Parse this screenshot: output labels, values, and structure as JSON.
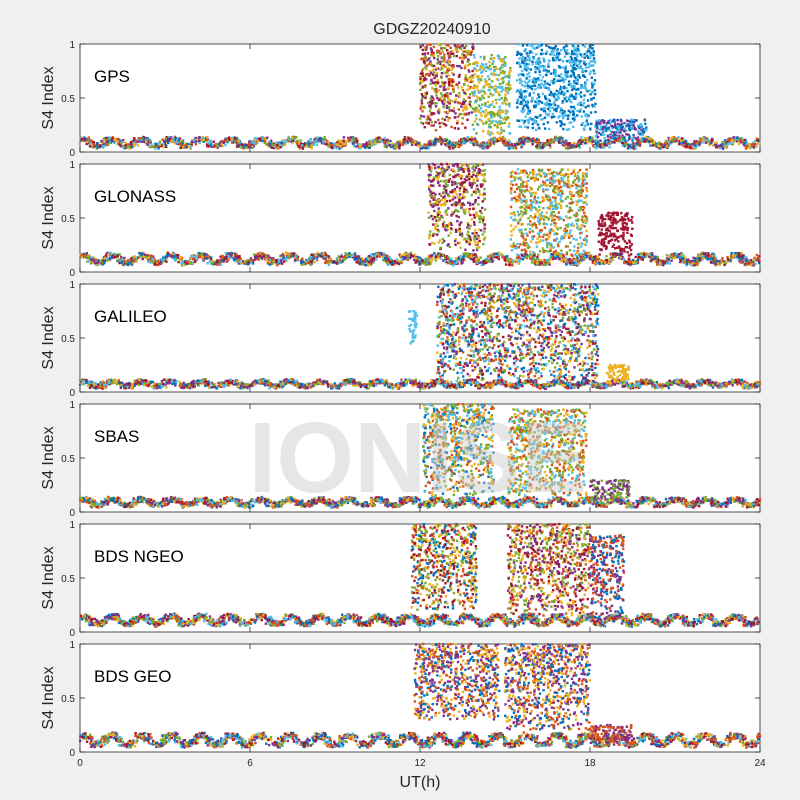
{
  "chart_data": {
    "type": "scatter",
    "title": "GDGZ20240910",
    "xlabel": "UT(h)",
    "ylabel": "S4 Index",
    "xlim": [
      0,
      24
    ],
    "ylim": [
      0,
      1
    ],
    "xticks": [
      0,
      6,
      12,
      18,
      24
    ],
    "yticks": [
      0,
      0.5,
      1
    ],
    "ytick_labels": [
      "0",
      "0.5",
      "1"
    ],
    "grid": false,
    "watermark": "IONISE",
    "colors": [
      "#0072bd",
      "#d95319",
      "#edb120",
      "#7e2f8e",
      "#77ac30",
      "#4dbeee",
      "#a2142f"
    ],
    "panels": [
      {
        "label": "GPS",
        "background_level": [
          0.05,
          0.12
        ],
        "active_intervals": [
          {
            "x": [
              12.0,
              13.9
            ],
            "y": [
              0.2,
              1.0
            ],
            "colors": [
              1,
              2,
              3,
              4,
              6
            ]
          },
          {
            "x": [
              13.9,
              15.2
            ],
            "y": [
              0.15,
              0.9
            ],
            "colors": [
              4,
              2,
              5
            ]
          },
          {
            "x": [
              15.4,
              18.2
            ],
            "y": [
              0.2,
              1.0
            ],
            "colors": [
              0,
              5
            ]
          },
          {
            "x": [
              18.2,
              20.0
            ],
            "y": [
              0.1,
              0.3
            ],
            "colors": [
              3,
              0,
              5
            ]
          }
        ]
      },
      {
        "label": "GLONASS",
        "background_level": [
          0.08,
          0.16
        ],
        "active_intervals": [
          {
            "x": [
              12.3,
              14.3
            ],
            "y": [
              0.2,
              1.0
            ],
            "colors": [
              2,
              3,
              4,
              6
            ]
          },
          {
            "x": [
              15.2,
              17.9
            ],
            "y": [
              0.15,
              0.95
            ],
            "colors": [
              1,
              4,
              5,
              2
            ]
          },
          {
            "x": [
              18.3,
              19.5
            ],
            "y": [
              0.15,
              0.55
            ],
            "colors": [
              6
            ]
          }
        ]
      },
      {
        "label": "GALILEO",
        "background_level": [
          0.05,
          0.1
        ],
        "active_intervals": [
          {
            "x": [
              11.6,
              11.9
            ],
            "y": [
              0.45,
              0.75
            ],
            "colors": [
              5
            ]
          },
          {
            "x": [
              12.6,
              18.3
            ],
            "y": [
              0.1,
              1.0
            ],
            "colors": [
              0,
              1,
              3,
              4,
              5,
              6,
              2
            ]
          },
          {
            "x": [
              18.6,
              19.4
            ],
            "y": [
              0.08,
              0.25
            ],
            "colors": [
              2
            ]
          }
        ]
      },
      {
        "label": "SBAS",
        "background_level": [
          0.06,
          0.12
        ],
        "active_intervals": [
          {
            "x": [
              12.1,
              14.6
            ],
            "y": [
              0.15,
              1.0
            ],
            "colors": [
              5,
              0,
              1,
              2,
              4
            ]
          },
          {
            "x": [
              15.1,
              17.9
            ],
            "y": [
              0.15,
              0.95
            ],
            "colors": [
              5,
              1,
              2,
              4
            ]
          },
          {
            "x": [
              18.0,
              19.4
            ],
            "y": [
              0.1,
              0.3
            ],
            "colors": [
              4,
              3
            ]
          }
        ]
      },
      {
        "label": "BDS NGEO",
        "background_level": [
          0.07,
          0.15
        ],
        "active_intervals": [
          {
            "x": [
              11.7,
              14.0
            ],
            "y": [
              0.2,
              1.0
            ],
            "colors": [
              0,
              1,
              2,
              4,
              6
            ]
          },
          {
            "x": [
              15.1,
              18.0
            ],
            "y": [
              0.15,
              1.0
            ],
            "colors": [
              1,
              3,
              4,
              6,
              2
            ]
          },
          {
            "x": [
              18.0,
              19.2
            ],
            "y": [
              0.1,
              0.9
            ],
            "colors": [
              0,
              1,
              3
            ]
          }
        ]
      },
      {
        "label": "BDS GEO",
        "background_level": [
          0.06,
          0.16
        ],
        "active_intervals": [
          {
            "x": [
              11.8,
              14.8
            ],
            "y": [
              0.3,
              1.0
            ],
            "colors": [
              3,
              0,
              2,
              1
            ]
          },
          {
            "x": [
              15.0,
              18.0
            ],
            "y": [
              0.2,
              1.0
            ],
            "colors": [
              2,
              3,
              0,
              1
            ]
          },
          {
            "x": [
              18.0,
              19.5
            ],
            "y": [
              0.05,
              0.25
            ],
            "colors": [
              1,
              3
            ]
          }
        ]
      }
    ]
  }
}
